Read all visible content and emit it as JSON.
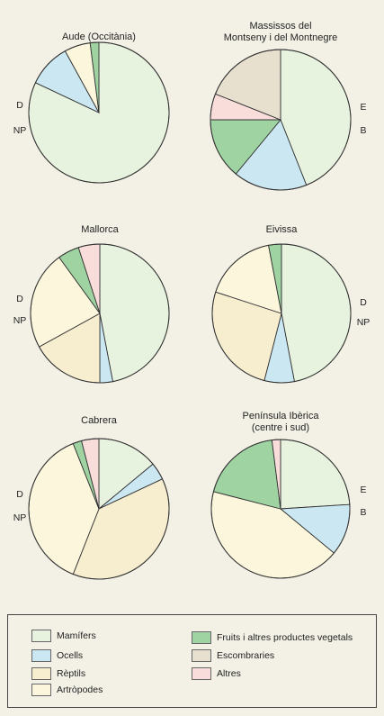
{
  "colors": {
    "mamifers": "#e7f3df",
    "ocells": "#cbe8f2",
    "reptils": "#f7edcf",
    "artropodes": "#fcf7dc",
    "fruits": "#9fd3a2",
    "escombraries": "#e8e0cf",
    "altres": "#f8dddb"
  },
  "legend": [
    {
      "key": "mamifers",
      "label": "Mamífers"
    },
    {
      "key": "ocells",
      "label": "Ocells"
    },
    {
      "key": "reptils",
      "label": "Rèptils"
    },
    {
      "key": "artropodes",
      "label": "Artròpodes"
    },
    {
      "key": "fruits",
      "label": "Fruits i altres productes vegetals"
    },
    {
      "key": "escombraries",
      "label": "Escombraries"
    },
    {
      "key": "altres",
      "label": "Altres"
    }
  ],
  "chart_data": [
    {
      "type": "pie",
      "title": [
        "Aude (Occitània)"
      ],
      "side_labels": [
        "D",
        "NP"
      ],
      "slices": [
        {
          "category": "Mamífers",
          "value": 82
        },
        {
          "category": "Ocells",
          "value": 10
        },
        {
          "category": "Artròpodes",
          "value": 6
        },
        {
          "category": "Fruits i altres productes vegetals",
          "value": 2
        }
      ]
    },
    {
      "type": "pie",
      "title": [
        "Massissos del",
        "Montseny i del Montnegre"
      ],
      "side_labels": [
        "E",
        "B"
      ],
      "slices": [
        {
          "category": "Mamífers",
          "value": 44
        },
        {
          "category": "Ocells",
          "value": 17
        },
        {
          "category": "Fruits i altres productes vegetals",
          "value": 14
        },
        {
          "category": "Altres",
          "value": 6
        },
        {
          "category": "Escombraries",
          "value": 19
        }
      ]
    },
    {
      "type": "pie",
      "title": [
        "Mallorca"
      ],
      "side_labels": [
        "D",
        "NP"
      ],
      "slices": [
        {
          "category": "Mamífers",
          "value": 47
        },
        {
          "category": "Ocells",
          "value": 3
        },
        {
          "category": "Rèptils",
          "value": 17
        },
        {
          "category": "Artròpodes",
          "value": 23
        },
        {
          "category": "Fruits i altres productes vegetals",
          "value": 5
        },
        {
          "category": "Altres",
          "value": 5
        }
      ]
    },
    {
      "type": "pie",
      "title": [
        "Eivissa"
      ],
      "side_labels": [
        "D",
        "NP"
      ],
      "slices": [
        {
          "category": "Mamífers",
          "value": 47
        },
        {
          "category": "Ocells",
          "value": 7
        },
        {
          "category": "Rèptils",
          "value": 26
        },
        {
          "category": "Artròpodes",
          "value": 17
        },
        {
          "category": "Fruits i altres productes vegetals",
          "value": 3
        }
      ]
    },
    {
      "type": "pie",
      "title": [
        "Cabrera"
      ],
      "side_labels": [
        "D",
        "NP"
      ],
      "slices": [
        {
          "category": "Mamífers",
          "value": 14
        },
        {
          "category": "Ocells",
          "value": 4
        },
        {
          "category": "Rèptils",
          "value": 38
        },
        {
          "category": "Artròpodes",
          "value": 38
        },
        {
          "category": "Fruits i altres productes vegetals",
          "value": 2
        },
        {
          "category": "Altres",
          "value": 4
        }
      ]
    },
    {
      "type": "pie",
      "title": [
        "Península Ibèrica",
        "(centre i sud)"
      ],
      "side_labels": [
        "E",
        "B"
      ],
      "slices": [
        {
          "category": "Mamífers",
          "value": 24
        },
        {
          "category": "Ocells",
          "value": 12
        },
        {
          "category": "Artròpodes",
          "value": 43
        },
        {
          "category": "Fruits i altres productes vegetals",
          "value": 19
        },
        {
          "category": "Altres",
          "value": 2
        }
      ]
    }
  ]
}
